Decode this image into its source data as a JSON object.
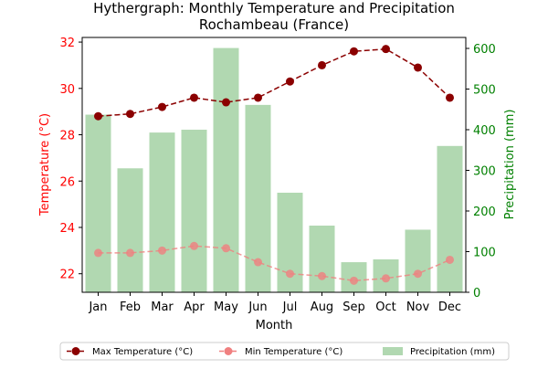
{
  "chart_data": {
    "type": "bar+line",
    "title": "Hythergraph: Monthly Temperature and Precipitation",
    "subtitle": "Rochambeau (France)",
    "xlabel": "Month",
    "ylabel_left": "Temperature (°C)",
    "ylabel_right": "Precipitation (mm)",
    "categories": [
      "Jan",
      "Feb",
      "Mar",
      "Apr",
      "May",
      "Jun",
      "Jul",
      "Aug",
      "Sep",
      "Oct",
      "Nov",
      "Dec"
    ],
    "ylim_left": [
      21.2,
      32.2
    ],
    "ylim_right": [
      0,
      627
    ],
    "yticks_left": [
      22,
      24,
      26,
      28,
      30,
      32
    ],
    "yticks_right": [
      0,
      100,
      200,
      300,
      400,
      500,
      600
    ],
    "series": [
      {
        "name": "Max Temperature (°C)",
        "axis": "left",
        "kind": "line",
        "style": "dashed",
        "color": "#8b0000",
        "values": [
          28.8,
          28.9,
          29.2,
          29.6,
          29.4,
          29.6,
          30.3,
          31.0,
          31.6,
          31.7,
          30.9,
          29.6
        ]
      },
      {
        "name": "Min Temperature (°C)",
        "axis": "left",
        "kind": "line",
        "style": "dashed",
        "color": "#f08080",
        "values": [
          22.9,
          22.9,
          23.0,
          23.2,
          23.1,
          22.5,
          22.0,
          21.9,
          21.7,
          21.8,
          22.0,
          22.6
        ]
      },
      {
        "name": "Precipitation (mm)",
        "axis": "right",
        "kind": "bar",
        "color": "#b1d8b1",
        "values": [
          437,
          305,
          393,
          400,
          601,
          461,
          245,
          164,
          74,
          81,
          154,
          360
        ]
      }
    ],
    "legend_position": "bottom",
    "grid": false,
    "colors": {
      "left_axis": "#ff0000",
      "right_axis": "#008000"
    }
  }
}
